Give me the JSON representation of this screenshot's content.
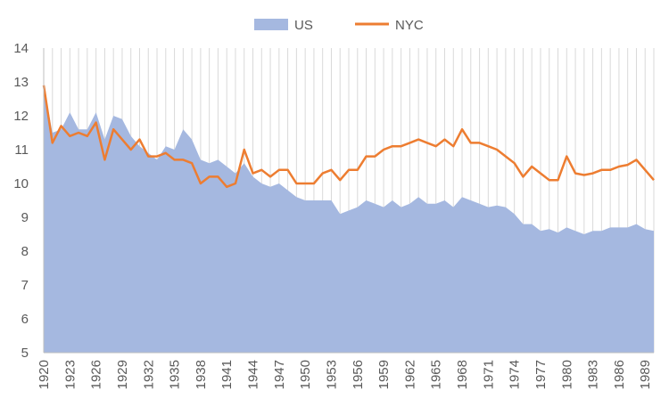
{
  "chart_data": {
    "type": "area+line",
    "title": "",
    "xlabel": "",
    "ylabel": "",
    "ylim": [
      5,
      14
    ],
    "yticks": [
      "5",
      "6",
      "7",
      "8",
      "9",
      "10",
      "11",
      "12",
      "13",
      "14"
    ],
    "x": [
      1920,
      1921,
      1922,
      1923,
      1924,
      1925,
      1926,
      1927,
      1928,
      1929,
      1930,
      1931,
      1932,
      1933,
      1934,
      1935,
      1936,
      1937,
      1938,
      1939,
      1940,
      1941,
      1942,
      1943,
      1944,
      1945,
      1946,
      1947,
      1948,
      1949,
      1950,
      1951,
      1952,
      1953,
      1954,
      1955,
      1956,
      1957,
      1958,
      1959,
      1960,
      1961,
      1962,
      1963,
      1964,
      1965,
      1966,
      1967,
      1968,
      1969,
      1970,
      1971,
      1972,
      1973,
      1974,
      1975,
      1976,
      1977,
      1978,
      1979,
      1980,
      1981,
      1982,
      1983,
      1984,
      1985,
      1986,
      1987,
      1988,
      1989,
      1990
    ],
    "xtick_labels": [
      "1920",
      "1923",
      "1926",
      "1929",
      "1932",
      "1935",
      "1938",
      "1941",
      "1944",
      "1947",
      "1950",
      "1953",
      "1956",
      "1959",
      "1962",
      "1965",
      "1968",
      "1971",
      "1974",
      "1977",
      "1980",
      "1983",
      "1986",
      "1989"
    ],
    "grid": "vertical",
    "legend": "top",
    "series": [
      {
        "name": "US",
        "kind": "area",
        "color": "#a5b8e0",
        "values": [
          12.9,
          11.5,
          11.6,
          12.1,
          11.6,
          11.6,
          12.1,
          11.3,
          12.0,
          11.9,
          11.4,
          11.1,
          10.9,
          10.7,
          11.1,
          11.0,
          11.6,
          11.3,
          10.7,
          10.6,
          10.7,
          10.5,
          10.3,
          10.6,
          10.2,
          10.0,
          9.9,
          10.0,
          9.8,
          9.6,
          9.5,
          9.5,
          9.5,
          9.5,
          9.1,
          9.2,
          9.3,
          9.5,
          9.4,
          9.3,
          9.5,
          9.3,
          9.4,
          9.6,
          9.4,
          9.4,
          9.5,
          9.3,
          9.6,
          9.5,
          9.4,
          9.3,
          9.35,
          9.3,
          9.1,
          8.8,
          8.8,
          8.6,
          8.65,
          8.55,
          8.7,
          8.6,
          8.5,
          8.6,
          8.6,
          8.7,
          8.7,
          8.7,
          8.8,
          8.65,
          8.6
        ]
      },
      {
        "name": "NYC",
        "kind": "line",
        "color": "#ed7d31",
        "values": [
          12.9,
          11.2,
          11.7,
          11.4,
          11.5,
          11.4,
          11.8,
          10.7,
          11.6,
          11.3,
          11.0,
          11.3,
          10.8,
          10.8,
          10.9,
          10.7,
          10.7,
          10.6,
          10.0,
          10.2,
          10.2,
          9.9,
          10.0,
          11.0,
          10.3,
          10.4,
          10.2,
          10.4,
          10.4,
          10.0,
          10.0,
          10.0,
          10.3,
          10.4,
          10.1,
          10.4,
          10.4,
          10.8,
          10.8,
          11.0,
          11.1,
          11.1,
          11.2,
          11.3,
          11.2,
          11.1,
          11.3,
          11.1,
          11.6,
          11.2,
          11.2,
          11.1,
          11.0,
          10.8,
          10.6,
          10.2,
          10.5,
          10.3,
          10.1,
          10.1,
          10.8,
          10.3,
          10.25,
          10.3,
          10.4,
          10.4,
          10.5,
          10.55,
          10.7,
          10.4,
          10.1
        ]
      }
    ]
  }
}
